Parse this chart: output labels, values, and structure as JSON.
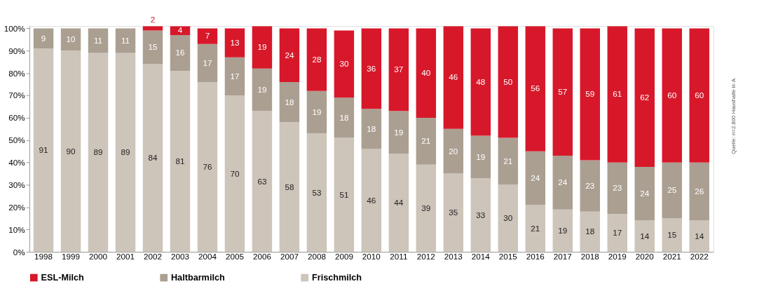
{
  "chart_data": {
    "type": "bar",
    "stacked": true,
    "categories": [
      "1998",
      "1999",
      "2000",
      "2001",
      "2002",
      "2003",
      "2004",
      "2005",
      "2006",
      "2007",
      "2008",
      "2009",
      "2010",
      "2011",
      "2012",
      "2013",
      "2014",
      "2015",
      "2016",
      "2017",
      "2018",
      "2019",
      "2020",
      "2021",
      "2022"
    ],
    "series": [
      {
        "name": "Frischmilch",
        "color": "#cdc4ba",
        "values": [
          91,
          90,
          89,
          89,
          84,
          81,
          76,
          70,
          63,
          58,
          53,
          51,
          46,
          44,
          39,
          35,
          33,
          30,
          21,
          19,
          18,
          17,
          14,
          15,
          14
        ]
      },
      {
        "name": "Haltbarmilch",
        "color": "#ab9f91",
        "values": [
          9,
          10,
          11,
          11,
          15,
          16,
          17,
          17,
          19,
          18,
          19,
          18,
          18,
          19,
          21,
          20,
          19,
          21,
          24,
          24,
          23,
          23,
          24,
          25,
          26
        ]
      },
      {
        "name": "ESL-Milch",
        "color": "#d7182a",
        "values": [
          null,
          null,
          null,
          null,
          2,
          4,
          7,
          13,
          19,
          24,
          28,
          30,
          36,
          37,
          40,
          46,
          48,
          50,
          56,
          57,
          59,
          61,
          62,
          60,
          60
        ]
      }
    ],
    "ylim": [
      0,
      101
    ],
    "yticks": [
      {
        "value": 0,
        "label": "0%"
      },
      {
        "value": 10,
        "label": "10%"
      },
      {
        "value": 20,
        "label": "20%"
      },
      {
        "value": 30,
        "label": "30%"
      },
      {
        "value": 40,
        "label": "40%"
      },
      {
        "value": 50,
        "label": "50%"
      },
      {
        "value": 60,
        "label": "60%"
      },
      {
        "value": 70,
        "label": "70%"
      },
      {
        "value": 80,
        "label": "80%"
      },
      {
        "value": 90,
        "label": "90%"
      },
      {
        "value": 100,
        "label": "100%"
      }
    ],
    "data_labels": true,
    "grid": false,
    "legend": "bottom",
    "annotations": [
      "Quelle: n=2.800 Haushalte in A"
    ]
  }
}
